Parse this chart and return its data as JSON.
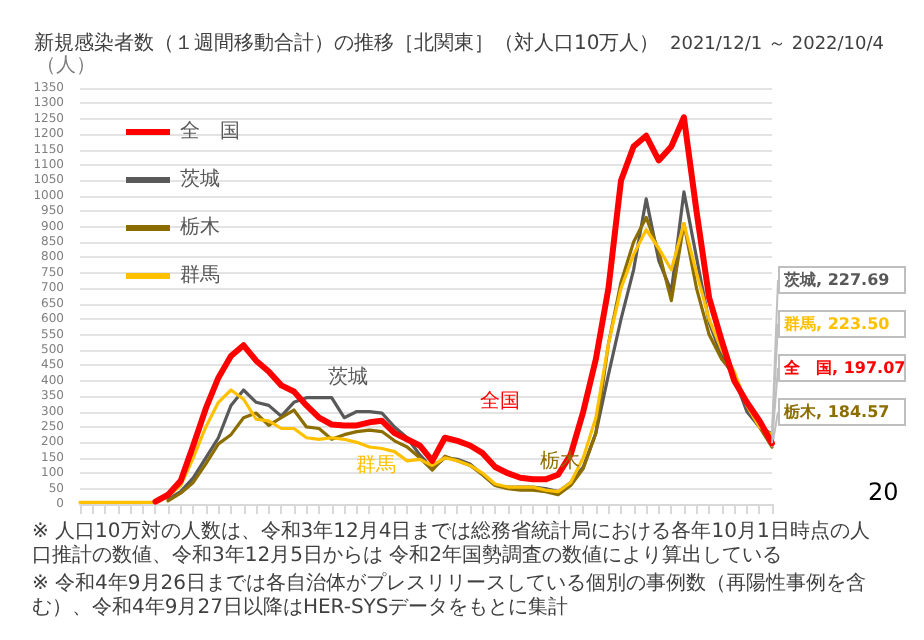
{
  "chart_data": {
    "type": "line",
    "title": "新規感染者数（１週間移動合計）の推移［北関東］（対人口10万人）",
    "subtitle": "2021/12/1 ～ 2022/10/4",
    "ylabel": "（人）",
    "categories": [
      null,
      null,
      null,
      null,
      null,
      null,
      null,
      null,
      null,
      null,
      null,
      null,
      null,
      null,
      null,
      null,
      null,
      null,
      null,
      null,
      null,
      null,
      null,
      null,
      null,
      null,
      null,
      null,
      null,
      null,
      null,
      null,
      null,
      null,
      null,
      null,
      null,
      null,
      null,
      null,
      null,
      null,
      null,
      null,
      null,
      null,
      null,
      null,
      null,
      null,
      null,
      null,
      null,
      null,
      null,
      null
    ],
    "series": [
      {
        "name": "全　国",
        "color": "#ff0000",
        "values": [
          null,
          null,
          null,
          null,
          null,
          null,
          8,
          30,
          75,
          190,
          310,
          410,
          480,
          515,
          465,
          430,
          385,
          365,
          320,
          280,
          258,
          255,
          255,
          265,
          270,
          230,
          210,
          190,
          140,
          215,
          205,
          190,
          165,
          120,
          100,
          85,
          80,
          80,
          95,
          160,
          300,
          470,
          700,
          1050,
          1160,
          1195,
          1115,
          1160,
          1255,
          950,
          670,
          530,
          400,
          330,
          270,
          197.07
        ],
        "value_labels": [
          null,
          null,
          null,
          null,
          null,
          null,
          null,
          null,
          null,
          null,
          null,
          null,
          null,
          null,
          null,
          null,
          null,
          null,
          null,
          null,
          null,
          null,
          null,
          null,
          null,
          null,
          null,
          null,
          null,
          null,
          null,
          null,
          null,
          null,
          null,
          null,
          null,
          null,
          null,
          null,
          null,
          null,
          null,
          null,
          null,
          null,
          null,
          null,
          null,
          null,
          null,
          null,
          null,
          null,
          null,
          "全　国, 197.07"
        ]
      },
      {
        "name": "茨城",
        "color": "#595959",
        "values": [
          null,
          null,
          null,
          null,
          null,
          null,
          null,
          15,
          40,
          85,
          150,
          215,
          320,
          370,
          330,
          320,
          285,
          330,
          345,
          345,
          345,
          280,
          300,
          300,
          295,
          250,
          215,
          160,
          115,
          150,
          145,
          130,
          95,
          60,
          55,
          55,
          55,
          50,
          40,
          70,
          120,
          230,
          420,
          600,
          760,
          990,
          790,
          690,
          1013,
          800,
          590,
          480,
          410,
          300,
          250,
          227.69
        ],
        "value_labels": [
          null,
          null,
          null,
          null,
          null,
          null,
          null,
          null,
          null,
          null,
          null,
          null,
          null,
          null,
          null,
          null,
          null,
          null,
          null,
          null,
          null,
          null,
          null,
          null,
          null,
          null,
          null,
          null,
          null,
          null,
          null,
          null,
          null,
          null,
          null,
          null,
          null,
          null,
          null,
          null,
          null,
          null,
          null,
          null,
          null,
          null,
          null,
          null,
          null,
          null,
          null,
          null,
          null,
          null,
          null,
          "茨城, 227.69"
        ]
      },
      {
        "name": "栃木",
        "color": "#8c6d00",
        "values": [
          null,
          null,
          null,
          null,
          null,
          null,
          null,
          10,
          35,
          70,
          130,
          195,
          225,
          280,
          295,
          255,
          280,
          305,
          250,
          245,
          210,
          225,
          235,
          240,
          235,
          205,
          185,
          150,
          110,
          155,
          140,
          125,
          95,
          60,
          50,
          45,
          45,
          40,
          30,
          60,
          115,
          230,
          520,
          720,
          850,
          930,
          820,
          660,
          910,
          700,
          550,
          470,
          420,
          320,
          250,
          184.57
        ],
        "value_labels": [
          null,
          null,
          null,
          null,
          null,
          null,
          null,
          null,
          null,
          null,
          null,
          null,
          null,
          null,
          null,
          null,
          null,
          null,
          null,
          null,
          null,
          null,
          null,
          null,
          null,
          null,
          null,
          null,
          null,
          null,
          null,
          null,
          null,
          null,
          null,
          null,
          null,
          null,
          null,
          null,
          null,
          null,
          null,
          null,
          null,
          null,
          null,
          null,
          null,
          null,
          null,
          null,
          null,
          null,
          null,
          "栃木, 184.57"
        ]
      },
      {
        "name": "群馬",
        "color": "#ffc000",
        "values": [
          5,
          5,
          5,
          5,
          5,
          5,
          5,
          25,
          60,
          150,
          250,
          330,
          370,
          340,
          275,
          270,
          245,
          245,
          215,
          210,
          215,
          210,
          200,
          185,
          180,
          170,
          140,
          145,
          125,
          150,
          140,
          125,
          100,
          65,
          55,
          55,
          55,
          45,
          40,
          70,
          150,
          280,
          520,
          700,
          810,
          890,
          830,
          760,
          910,
          750,
          600,
          500,
          430,
          320,
          250,
          223.5
        ],
        "value_labels": [
          null,
          null,
          null,
          null,
          null,
          null,
          null,
          null,
          null,
          null,
          null,
          null,
          null,
          null,
          null,
          null,
          null,
          null,
          null,
          null,
          null,
          null,
          null,
          null,
          null,
          null,
          null,
          null,
          null,
          null,
          null,
          null,
          null,
          null,
          null,
          null,
          null,
          null,
          null,
          null,
          null,
          null,
          null,
          null,
          null,
          null,
          null,
          null,
          null,
          null,
          null,
          null,
          null,
          null,
          null,
          "群馬, 223.50"
        ]
      }
    ],
    "ylim": [
      0,
      1350
    ],
    "yticks": [
      0,
      50,
      100,
      150,
      200,
      250,
      300,
      350,
      400,
      450,
      500,
      550,
      600,
      650,
      700,
      750,
      800,
      850,
      900,
      950,
      1000,
      1050,
      1100,
      1150,
      1200,
      1250,
      1300,
      1350
    ],
    "grid": "y",
    "legend": "top left",
    "marker": "none",
    "line_style": "solid",
    "annotations": [
      "茨城",
      "全国",
      "群馬",
      "栃木",
      "※ 人口10万対の人数は、令和3年12月4日までは総務省統計局における各年10月1日時点の人口推計の数値、令和3年12月5日からは 令和2年国勢調査の数値により算出している",
      "※ 令和4年9月26日までは各自治体がプレスリリースしている個別の事例数（再陽性事例を含む）、令和4年9月27日以降はHER-SYSデータをもとに集計",
      "20"
    ]
  }
}
